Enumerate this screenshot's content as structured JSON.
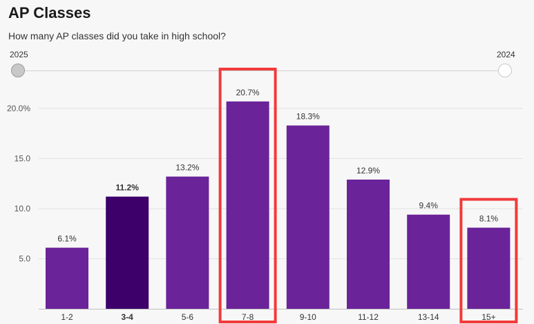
{
  "header": {
    "title": "AP Classes",
    "subtitle": "How many AP classes did you take in high school?"
  },
  "slider": {
    "start_label": "2025",
    "end_label": "2024"
  },
  "colors": {
    "bar": "#6a2399",
    "bar_highlight": "#3d006b",
    "annotation_box": "#f23a3a",
    "grid": "#e2e2e2"
  },
  "chart_data": {
    "type": "bar",
    "categories": [
      "1-2",
      "3-4",
      "5-6",
      "7-8",
      "9-10",
      "11-12",
      "13-14",
      "15+"
    ],
    "values": [
      6.1,
      11.2,
      13.2,
      20.7,
      18.3,
      12.9,
      9.4,
      8.1
    ],
    "value_labels": [
      "6.1%",
      "11.2%",
      "13.2%",
      "20.7%",
      "18.3%",
      "12.9%",
      "9.4%",
      "8.1%"
    ],
    "y_ticks": [
      5,
      10,
      15,
      20
    ],
    "y_tick_labels": [
      "5.0",
      "10.0",
      "15.0",
      "20.0%"
    ],
    "ylim": [
      0,
      22
    ],
    "highlighted_category": "3-4",
    "annotated_categories": [
      "7-8",
      "15+"
    ],
    "grid": true
  }
}
